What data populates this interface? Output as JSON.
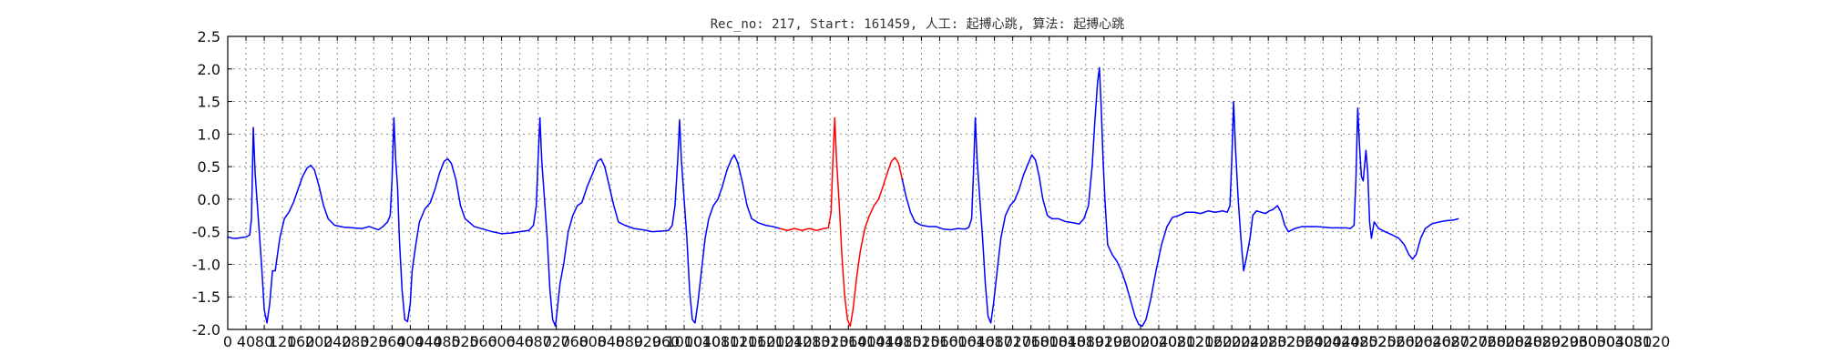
{
  "chart_data": {
    "type": "line",
    "title": "Rec_no: 217, Start: 161459, 人工: 起搏心跳, 算法: 起搏心跳",
    "xlabel": "",
    "ylabel": "",
    "xlim": [
      0,
      3120
    ],
    "ylim": [
      -2.0,
      2.5
    ],
    "grid": true,
    "x_ticks": [
      0,
      40,
      80,
      120,
      160,
      200,
      240,
      280,
      320,
      360,
      400,
      440,
      480,
      520,
      560,
      600,
      640,
      680,
      720,
      760,
      800,
      840,
      880,
      920,
      960,
      1000,
      1040,
      1080,
      1120,
      1160,
      1200,
      1240,
      1280,
      1320,
      1360,
      1400,
      1440,
      1480,
      1520,
      1560,
      1600,
      1640,
      1680,
      1720,
      1760,
      1800,
      1840,
      1880,
      1920,
      1960,
      2000,
      2040,
      2080,
      2120,
      2160,
      2200,
      2240,
      2280,
      2320,
      2360,
      2400,
      2440,
      2480,
      2520,
      2560,
      2600,
      2640,
      2680,
      2720,
      2760,
      2800,
      2840,
      2880,
      2920,
      2960,
      3000,
      3040,
      3080,
      3120
    ],
    "y_ticks": [
      -2.0,
      -1.5,
      -1.0,
      -0.5,
      0.0,
      0.5,
      1.0,
      1.5,
      2.0,
      2.5
    ],
    "series": [
      {
        "color": "#0000ff",
        "points": [
          [
            0,
            -0.58
          ],
          [
            10,
            -0.6
          ],
          [
            20,
            -0.6
          ],
          [
            30,
            -0.59
          ],
          [
            40,
            -0.58
          ],
          [
            48,
            -0.55
          ],
          [
            52,
            -0.3
          ],
          [
            56,
            1.1
          ],
          [
            60,
            0.4
          ],
          [
            66,
            -0.2
          ],
          [
            74,
            -1.0
          ],
          [
            80,
            -1.7
          ],
          [
            86,
            -1.9
          ],
          [
            92,
            -1.6
          ],
          [
            98,
            -1.1
          ],
          [
            104,
            -1.1
          ],
          [
            114,
            -0.6
          ],
          [
            124,
            -0.3
          ],
          [
            134,
            -0.2
          ],
          [
            144,
            -0.05
          ],
          [
            154,
            0.15
          ],
          [
            164,
            0.35
          ],
          [
            174,
            0.48
          ],
          [
            182,
            0.52
          ],
          [
            190,
            0.45
          ],
          [
            200,
            0.2
          ],
          [
            210,
            -0.1
          ],
          [
            220,
            -0.3
          ],
          [
            234,
            -0.4
          ],
          [
            254,
            -0.43
          ],
          [
            274,
            -0.44
          ],
          [
            294,
            -0.45
          ],
          [
            310,
            -0.42
          ],
          [
            330,
            -0.47
          ],
          [
            340,
            -0.42
          ],
          [
            350,
            -0.35
          ],
          [
            356,
            -0.25
          ],
          [
            360,
            0.3
          ],
          [
            364,
            1.25
          ],
          [
            368,
            0.6
          ],
          [
            372,
            0.2
          ],
          [
            376,
            -0.6
          ],
          [
            382,
            -1.4
          ],
          [
            388,
            -1.85
          ],
          [
            394,
            -1.88
          ],
          [
            400,
            -1.6
          ],
          [
            404,
            -1.1
          ],
          [
            412,
            -0.7
          ],
          [
            420,
            -0.35
          ],
          [
            432,
            -0.15
          ],
          [
            444,
            -0.05
          ],
          [
            454,
            0.15
          ],
          [
            464,
            0.4
          ],
          [
            474,
            0.58
          ],
          [
            482,
            0.62
          ],
          [
            490,
            0.55
          ],
          [
            500,
            0.3
          ],
          [
            510,
            -0.1
          ],
          [
            520,
            -0.3
          ],
          [
            540,
            -0.42
          ],
          [
            560,
            -0.46
          ],
          [
            580,
            -0.5
          ],
          [
            600,
            -0.53
          ],
          [
            620,
            -0.52
          ],
          [
            640,
            -0.5
          ],
          [
            660,
            -0.48
          ],
          [
            670,
            -0.4
          ],
          [
            676,
            -0.1
          ],
          [
            680,
            0.6
          ],
          [
            684,
            1.25
          ],
          [
            688,
            0.6
          ],
          [
            694,
            0.0
          ],
          [
            700,
            -0.6
          ],
          [
            706,
            -1.4
          ],
          [
            712,
            -1.85
          ],
          [
            718,
            -1.95
          ],
          [
            722,
            -1.7
          ],
          [
            728,
            -1.3
          ],
          [
            736,
            -1.0
          ],
          [
            746,
            -0.5
          ],
          [
            756,
            -0.25
          ],
          [
            766,
            -0.1
          ],
          [
            776,
            -0.05
          ],
          [
            788,
            0.2
          ],
          [
            800,
            0.4
          ],
          [
            810,
            0.58
          ],
          [
            818,
            0.62
          ],
          [
            826,
            0.5
          ],
          [
            836,
            0.2
          ],
          [
            846,
            -0.1
          ],
          [
            856,
            -0.35
          ],
          [
            870,
            -0.4
          ],
          [
            890,
            -0.45
          ],
          [
            910,
            -0.47
          ],
          [
            930,
            -0.5
          ],
          [
            950,
            -0.49
          ],
          [
            966,
            -0.48
          ],
          [
            974,
            -0.4
          ],
          [
            980,
            -0.1
          ],
          [
            986,
            0.6
          ],
          [
            990,
            1.22
          ],
          [
            994,
            0.6
          ],
          [
            1000,
            0.0
          ],
          [
            1006,
            -0.6
          ],
          [
            1012,
            -1.4
          ],
          [
            1018,
            -1.85
          ],
          [
            1024,
            -1.9
          ],
          [
            1030,
            -1.6
          ],
          [
            1038,
            -1.1
          ],
          [
            1046,
            -0.6
          ],
          [
            1054,
            -0.3
          ],
          [
            1064,
            -0.1
          ],
          [
            1074,
            0.0
          ],
          [
            1084,
            0.2
          ],
          [
            1094,
            0.45
          ],
          [
            1104,
            0.62
          ],
          [
            1110,
            0.68
          ],
          [
            1118,
            0.55
          ],
          [
            1128,
            0.25
          ],
          [
            1138,
            -0.1
          ],
          [
            1148,
            -0.3
          ],
          [
            1162,
            -0.36
          ],
          [
            1178,
            -0.4
          ],
          [
            1194,
            -0.42
          ],
          [
            1210,
            -0.45
          ]
        ]
      },
      {
        "color": "#ff0000",
        "points": [
          [
            1210,
            -0.45
          ],
          [
            1226,
            -0.48
          ],
          [
            1242,
            -0.45
          ],
          [
            1258,
            -0.48
          ],
          [
            1274,
            -0.45
          ],
          [
            1290,
            -0.48
          ],
          [
            1306,
            -0.45
          ],
          [
            1316,
            -0.44
          ],
          [
            1322,
            -0.2
          ],
          [
            1326,
            0.6
          ],
          [
            1330,
            1.25
          ],
          [
            1334,
            0.6
          ],
          [
            1340,
            -0.1
          ],
          [
            1346,
            -0.9
          ],
          [
            1352,
            -1.5
          ],
          [
            1358,
            -1.85
          ],
          [
            1364,
            -1.95
          ],
          [
            1370,
            -1.7
          ],
          [
            1378,
            -1.2
          ],
          [
            1386,
            -0.8
          ],
          [
            1396,
            -0.45
          ],
          [
            1406,
            -0.25
          ],
          [
            1416,
            -0.1
          ],
          [
            1426,
            0.0
          ],
          [
            1436,
            0.2
          ],
          [
            1446,
            0.42
          ],
          [
            1454,
            0.58
          ],
          [
            1462,
            0.64
          ],
          [
            1470,
            0.55
          ],
          [
            1478,
            0.3
          ]
        ]
      },
      {
        "color": "#0000ff",
        "points": [
          [
            1478,
            0.3
          ],
          [
            1486,
            0.05
          ],
          [
            1496,
            -0.2
          ],
          [
            1506,
            -0.35
          ],
          [
            1520,
            -0.4
          ],
          [
            1536,
            -0.42
          ],
          [
            1552,
            -0.42
          ],
          [
            1568,
            -0.46
          ],
          [
            1584,
            -0.47
          ],
          [
            1600,
            -0.45
          ],
          [
            1616,
            -0.46
          ],
          [
            1624,
            -0.43
          ],
          [
            1630,
            -0.3
          ],
          [
            1634,
            0.4
          ],
          [
            1638,
            1.25
          ],
          [
            1642,
            0.6
          ],
          [
            1648,
            0.0
          ],
          [
            1654,
            -0.6
          ],
          [
            1660,
            -1.3
          ],
          [
            1666,
            -1.8
          ],
          [
            1672,
            -1.9
          ],
          [
            1678,
            -1.6
          ],
          [
            1686,
            -1.1
          ],
          [
            1694,
            -0.6
          ],
          [
            1704,
            -0.25
          ],
          [
            1714,
            -0.1
          ],
          [
            1724,
            -0.02
          ],
          [
            1734,
            0.15
          ],
          [
            1744,
            0.38
          ],
          [
            1754,
            0.55
          ],
          [
            1762,
            0.68
          ],
          [
            1770,
            0.6
          ],
          [
            1778,
            0.35
          ],
          [
            1786,
            0.0
          ],
          [
            1796,
            -0.25
          ],
          [
            1806,
            -0.3
          ],
          [
            1820,
            -0.3
          ],
          [
            1834,
            -0.34
          ],
          [
            1850,
            -0.36
          ],
          [
            1866,
            -0.38
          ],
          [
            1876,
            -0.3
          ],
          [
            1886,
            -0.1
          ],
          [
            1894,
            0.5
          ],
          [
            1900,
            1.2
          ],
          [
            1906,
            1.8
          ],
          [
            1910,
            2.02
          ],
          [
            1914,
            1.4
          ],
          [
            1918,
            0.6
          ],
          [
            1922,
            0.0
          ],
          [
            1928,
            -0.7
          ],
          [
            1938,
            -0.85
          ],
          [
            1948,
            -0.95
          ],
          [
            1958,
            -1.1
          ],
          [
            1968,
            -1.3
          ],
          [
            1978,
            -1.55
          ],
          [
            1988,
            -1.8
          ],
          [
            1996,
            -1.92
          ],
          [
            2004,
            -1.95
          ],
          [
            2012,
            -1.85
          ],
          [
            2022,
            -1.55
          ],
          [
            2034,
            -1.1
          ],
          [
            2046,
            -0.7
          ],
          [
            2058,
            -0.42
          ],
          [
            2070,
            -0.28
          ],
          [
            2084,
            -0.25
          ],
          [
            2100,
            -0.2
          ],
          [
            2116,
            -0.2
          ],
          [
            2132,
            -0.22
          ],
          [
            2148,
            -0.18
          ],
          [
            2164,
            -0.2
          ],
          [
            2180,
            -0.18
          ],
          [
            2190,
            -0.2
          ],
          [
            2196,
            -0.1
          ],
          [
            2200,
            0.6
          ],
          [
            2204,
            1.5
          ],
          [
            2208,
            0.8
          ],
          [
            2214,
            0.0
          ],
          [
            2220,
            -0.6
          ],
          [
            2226,
            -1.1
          ],
          [
            2232,
            -0.9
          ],
          [
            2240,
            -0.6
          ],
          [
            2246,
            -0.25
          ],
          [
            2254,
            -0.18
          ],
          [
            2264,
            -0.2
          ],
          [
            2274,
            -0.22
          ],
          [
            2282,
            -0.18
          ],
          [
            2290,
            -0.16
          ],
          [
            2300,
            -0.1
          ],
          [
            2308,
            -0.2
          ],
          [
            2316,
            -0.4
          ],
          [
            2324,
            -0.5
          ],
          [
            2338,
            -0.45
          ],
          [
            2354,
            -0.42
          ],
          [
            2370,
            -0.42
          ],
          [
            2386,
            -0.42
          ],
          [
            2402,
            -0.43
          ],
          [
            2418,
            -0.44
          ],
          [
            2434,
            -0.44
          ],
          [
            2450,
            -0.44
          ],
          [
            2460,
            -0.45
          ],
          [
            2468,
            -0.4
          ],
          [
            2472,
            0.3
          ],
          [
            2476,
            1.4
          ],
          [
            2480,
            0.8
          ],
          [
            2484,
            0.35
          ],
          [
            2488,
            0.28
          ],
          [
            2494,
            0.75
          ],
          [
            2498,
            0.4
          ],
          [
            2502,
            -0.35
          ],
          [
            2506,
            -0.6
          ],
          [
            2512,
            -0.35
          ],
          [
            2522,
            -0.45
          ],
          [
            2536,
            -0.5
          ],
          [
            2552,
            -0.55
          ],
          [
            2566,
            -0.6
          ],
          [
            2578,
            -0.7
          ],
          [
            2588,
            -0.85
          ],
          [
            2596,
            -0.92
          ],
          [
            2604,
            -0.85
          ],
          [
            2614,
            -0.6
          ],
          [
            2624,
            -0.45
          ],
          [
            2638,
            -0.38
          ],
          [
            2654,
            -0.35
          ],
          [
            2670,
            -0.33
          ],
          [
            2686,
            -0.32
          ],
          [
            2696,
            -0.3
          ]
        ]
      }
    ]
  }
}
